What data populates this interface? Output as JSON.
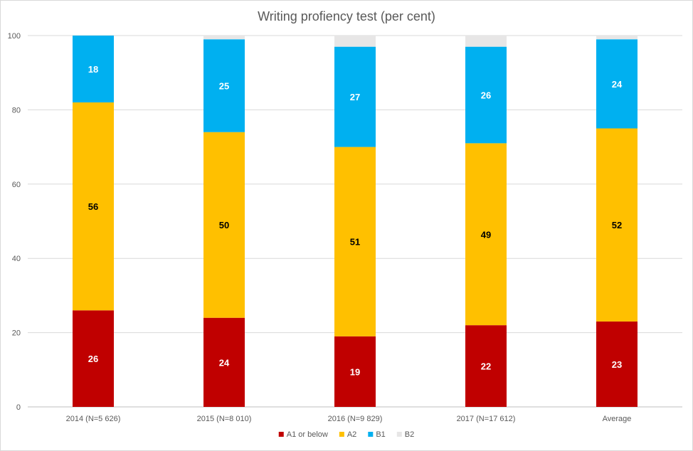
{
  "chart_data": {
    "type": "bar",
    "stacked": true,
    "title": "Writing profiency test (per cent)",
    "xlabel": "",
    "ylabel": "",
    "ylim": [
      0,
      100
    ],
    "yticks": [
      "0",
      "20",
      "40",
      "60",
      "80",
      "100"
    ],
    "grid": true,
    "legend_position": "bottom",
    "categories": [
      "2014 (N=5 626)",
      "2015 (N=8 010)",
      "2016 (N=9 829)",
      "2017 (N=17 612)",
      "Average"
    ],
    "series": [
      {
        "name": "A1 or below",
        "color": "#c00000",
        "label_color": "#ffffff",
        "values": [
          26,
          24,
          19,
          22,
          23
        ],
        "labels": [
          "26",
          "24",
          "19",
          "22",
          "23"
        ]
      },
      {
        "name": "A2",
        "color": "#ffc000",
        "label_color": "#000000",
        "values": [
          56,
          50,
          51,
          49,
          52
        ],
        "labels": [
          "56",
          "50",
          "51",
          "49",
          "52"
        ]
      },
      {
        "name": "B1",
        "color": "#00b0f0",
        "label_color": "#ffffff",
        "values": [
          18,
          25,
          27,
          26,
          24
        ],
        "labels": [
          "18",
          "25",
          "27",
          "26",
          "24"
        ]
      },
      {
        "name": "B2",
        "color": "#e7e6e6",
        "label_color": "#595959",
        "values": [
          0,
          1,
          3,
          3,
          2
        ],
        "labels": [
          "",
          "",
          "",
          "",
          ""
        ]
      }
    ]
  }
}
